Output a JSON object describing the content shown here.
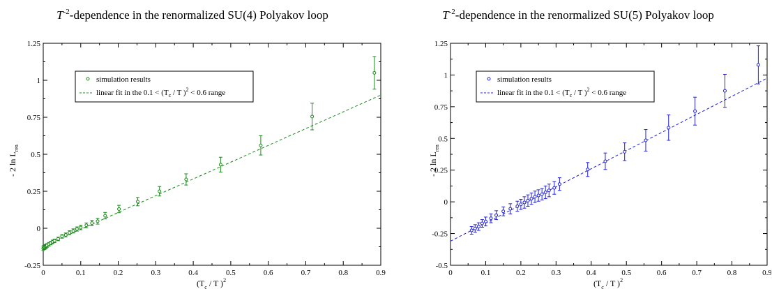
{
  "charts": [
    {
      "title_main": "-dependence in the renormalized SU(4) Polyakov loop",
      "title_var": "T",
      "title_exp": "-2",
      "ylabel": "- 2 ln L",
      "ylabel_sub": "ren",
      "xlabel_open": "(T",
      "xlabel_sub": "c",
      "xlabel_close": " / T )",
      "xlabel_exp": "2",
      "legend_points": "simulation results",
      "legend_fit_pre": "linear fit in the 0.1 < (T",
      "legend_fit_sub": "c",
      "legend_fit_mid": " / T )",
      "legend_fit_exp": "2",
      "legend_fit_post": " < 0.6 range",
      "color": "#1a8a1a"
    },
    {
      "title_main": "-dependence in the renormalized SU(5) Polyakov loop",
      "title_var": "T",
      "title_exp": "-2",
      "ylabel": "- 2 ln L",
      "ylabel_sub": "ren",
      "xlabel_open": "(T",
      "xlabel_sub": "c",
      "xlabel_close": " / T )",
      "xlabel_exp": "2",
      "legend_points": "simulation results",
      "legend_fit_pre": "linear fit in the 0.1 < (T",
      "legend_fit_sub": "c",
      "legend_fit_mid": " / T )",
      "legend_fit_exp": "2",
      "legend_fit_post": " < 0.6 range",
      "color": "#1f1fdc"
    }
  ],
  "chart_data": [
    {
      "type": "scatter",
      "xlim": [
        0,
        0.9
      ],
      "ylim": [
        -0.25,
        1.25
      ],
      "xticks": [
        "0",
        "0.1",
        "0.2",
        "0.3",
        "0.4",
        "0.5",
        "0.6",
        "0.7",
        "0.8",
        "0.9"
      ],
      "yticks": [
        "-0.25",
        "0",
        "0.25",
        "0.5",
        "0.75",
        "1",
        "1.25"
      ],
      "legend_position": "top-left",
      "series": [
        {
          "kind": "points_with_errors",
          "x": [
            0.0,
            0.002,
            0.004,
            0.006,
            0.008,
            0.01,
            0.015,
            0.02,
            0.025,
            0.03,
            0.04,
            0.05,
            0.06,
            0.07,
            0.08,
            0.09,
            0.1,
            0.115,
            0.13,
            0.145,
            0.165,
            0.202,
            0.252,
            0.31,
            0.381,
            0.473,
            0.58,
            0.717,
            0.883
          ],
          "y": [
            -0.135,
            -0.13,
            -0.128,
            -0.124,
            -0.12,
            -0.116,
            -0.108,
            -0.1,
            -0.092,
            -0.085,
            -0.072,
            -0.055,
            -0.045,
            -0.03,
            -0.018,
            -0.005,
            0.005,
            0.02,
            0.035,
            0.048,
            0.085,
            0.13,
            0.18,
            0.25,
            0.33,
            0.43,
            0.56,
            0.755,
            1.05
          ],
          "err": [
            0.015,
            0.014,
            0.014,
            0.013,
            0.013,
            0.012,
            0.012,
            0.012,
            0.012,
            0.012,
            0.012,
            0.012,
            0.013,
            0.013,
            0.014,
            0.014,
            0.015,
            0.016,
            0.018,
            0.02,
            0.022,
            0.025,
            0.028,
            0.032,
            0.038,
            0.05,
            0.065,
            0.09,
            0.11
          ]
        },
        {
          "kind": "fit_line",
          "x": [
            0.0,
            0.9
          ],
          "y": [
            -0.12,
            0.9
          ]
        }
      ]
    },
    {
      "type": "scatter",
      "xlim": [
        0,
        0.9
      ],
      "ylim": [
        -0.5,
        1.25
      ],
      "xticks": [
        "0",
        "0.1",
        "0.2",
        "0.3",
        "0.4",
        "0.5",
        "0.6",
        "0.7",
        "0.8",
        "0.9"
      ],
      "yticks": [
        "-0.5",
        "-0.25",
        "0",
        "0.25",
        "0.5",
        "0.75",
        "1",
        "1.25"
      ],
      "legend_position": "top-left",
      "series": [
        {
          "kind": "points_with_errors",
          "x": [
            0.06,
            0.07,
            0.08,
            0.09,
            0.1,
            0.115,
            0.13,
            0.15,
            0.17,
            0.19,
            0.2,
            0.21,
            0.22,
            0.23,
            0.24,
            0.25,
            0.26,
            0.27,
            0.28,
            0.295,
            0.31,
            0.39,
            0.44,
            0.495,
            0.555,
            0.62,
            0.695,
            0.78,
            0.875
          ],
          "y": [
            -0.225,
            -0.21,
            -0.195,
            -0.17,
            -0.155,
            -0.13,
            -0.105,
            -0.075,
            -0.055,
            -0.035,
            -0.02,
            -0.005,
            0.01,
            0.025,
            0.04,
            0.05,
            0.06,
            0.075,
            0.09,
            0.11,
            0.14,
            0.255,
            0.32,
            0.395,
            0.485,
            0.585,
            0.715,
            0.875,
            1.08
          ],
          "err": [
            0.03,
            0.03,
            0.03,
            0.03,
            0.035,
            0.035,
            0.035,
            0.035,
            0.04,
            0.04,
            0.04,
            0.045,
            0.045,
            0.045,
            0.045,
            0.045,
            0.045,
            0.05,
            0.05,
            0.05,
            0.05,
            0.055,
            0.065,
            0.07,
            0.085,
            0.1,
            0.11,
            0.13,
            0.15
          ]
        },
        {
          "kind": "fit_line",
          "x": [
            0.0,
            0.9
          ],
          "y": [
            -0.31,
            0.975
          ]
        }
      ]
    }
  ]
}
